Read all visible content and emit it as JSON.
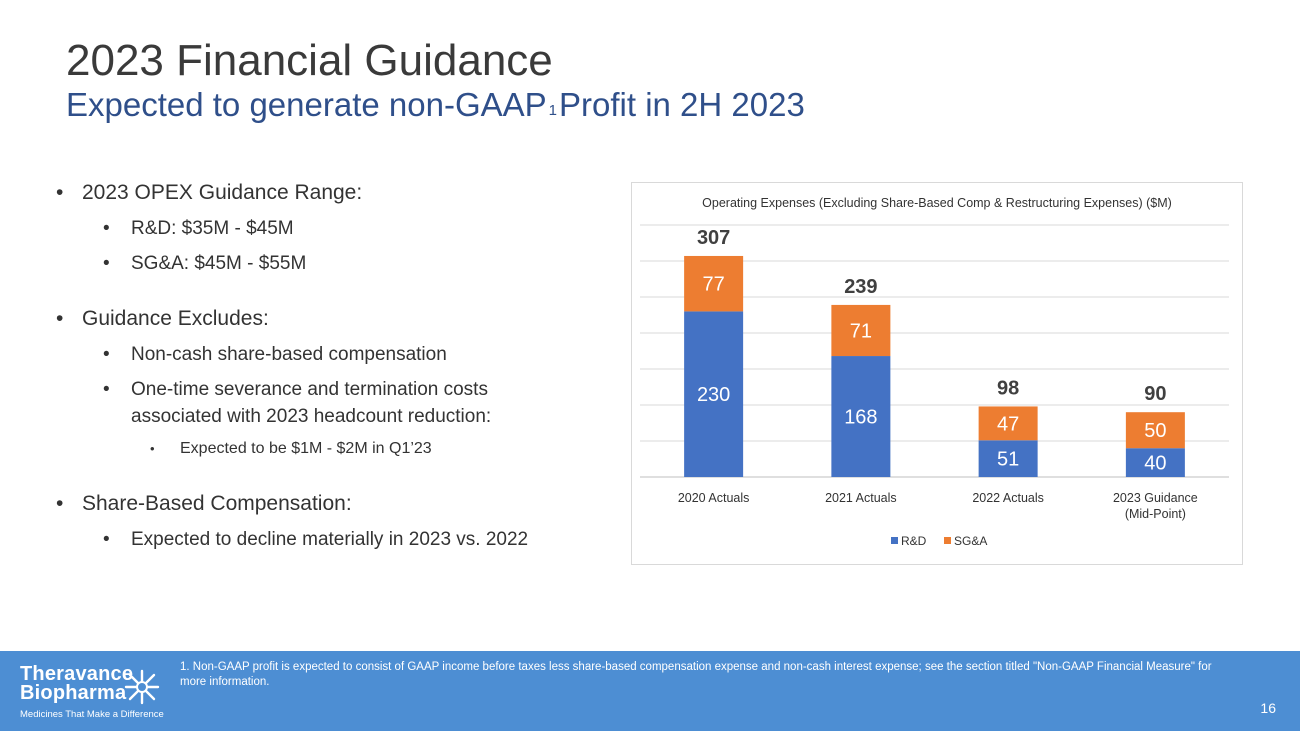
{
  "slide": {
    "title": "2023 Financial Guidance",
    "subtitle_before": "Expected to generate non-GAAP",
    "subtitle_sup": "1",
    "subtitle_after": "Profit in 2H 2023",
    "page_number": "16"
  },
  "bullets": {
    "opex_heading": "2023 OPEX Guidance Range:",
    "opex_rd": "R&D: $35M - $45M",
    "opex_sga": "SG&A: $45M - $55M",
    "excludes_heading": "Guidance Excludes:",
    "excludes_noncash": "Non-cash share-based compensation",
    "excludes_onetime_line1": "One-time severance and termination costs",
    "excludes_onetime_line2": "associated with 2023 headcount reduction:",
    "excludes_expected": "Expected to be $1M - $2M in Q1’23",
    "sbc_heading": "Share-Based Compensation:",
    "sbc_detail": "Expected to decline materially in 2023 vs. 2022"
  },
  "footer": {
    "logo_line1": "Theravance",
    "logo_line2": "Biopharma",
    "logo_tagline": "Medicines That Make a Difference",
    "footnote": "1. Non-GAAP profit is expected to consist of GAAP income before taxes less share-based compensation expense and non-cash interest expense; see the section titled \"Non-GAAP Financial Measure\" for more information."
  },
  "colors": {
    "rd": "#4472c4",
    "sga": "#ed7d31",
    "footer_bg": "#4d8ed3",
    "title": "#3a3a3a",
    "subtitle": "#2f4f8a"
  },
  "chart_data": {
    "type": "bar",
    "stacked": true,
    "title": "Operating Expenses (Excluding Share-Based Comp & Restructuring Expenses) ($M)",
    "categories": [
      "2020 Actuals",
      "2021 Actuals",
      "2022 Actuals",
      "2023 Guidance (Mid-Point)"
    ],
    "category_lines": [
      [
        "2020 Actuals"
      ],
      [
        "2021 Actuals"
      ],
      [
        "2022 Actuals"
      ],
      [
        "2023 Guidance",
        "(Mid-Point)"
      ]
    ],
    "series": [
      {
        "name": "R&D",
        "values": [
          230,
          168,
          51,
          40
        ]
      },
      {
        "name": "SG&A",
        "values": [
          77,
          71,
          47,
          50
        ]
      }
    ],
    "totals": [
      307,
      239,
      98,
      90
    ],
    "ylim": [
      0,
      350
    ],
    "y_gridline_step": 50,
    "y_axis_labels_shown": false,
    "grid": true,
    "legend": "bottom-center",
    "xlabel": "",
    "ylabel": ""
  }
}
